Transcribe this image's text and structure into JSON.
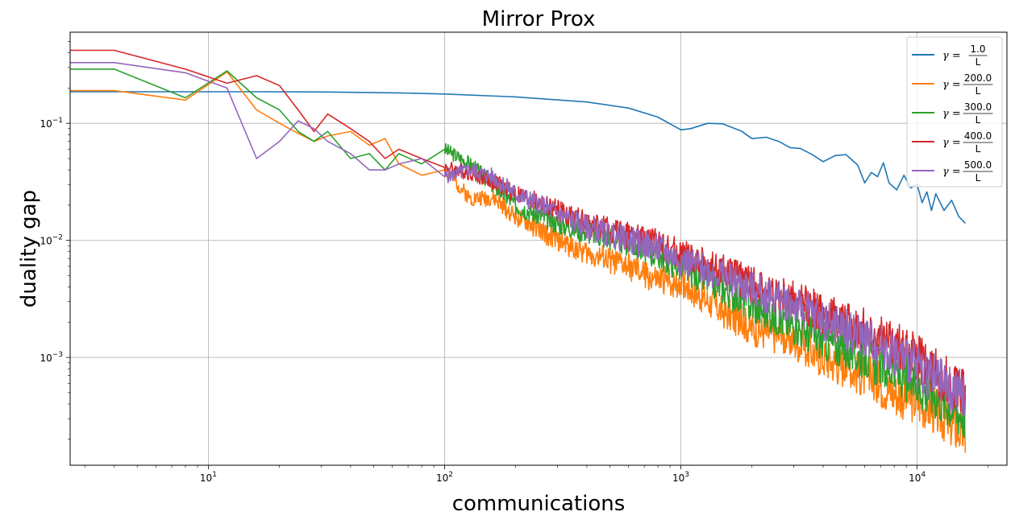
{
  "chart_data": {
    "type": "line",
    "title": "Mirror Prox",
    "xlabel": "communications",
    "ylabel": "duality gap",
    "x_scale": "log",
    "y_scale": "log",
    "xlim": [
      2.6,
      24000
    ],
    "ylim": [
      0.00012,
      0.6
    ],
    "x_ticks": [
      {
        "value": 10,
        "base": "10",
        "exp": "1"
      },
      {
        "value": 100,
        "base": "10",
        "exp": "2"
      },
      {
        "value": 1000,
        "base": "10",
        "exp": "3"
      },
      {
        "value": 10000,
        "base": "10",
        "exp": "4"
      }
    ],
    "y_ticks": [
      {
        "value": 0.001,
        "base": "10",
        "exp": "−3"
      },
      {
        "value": 0.01,
        "base": "10",
        "exp": "−2"
      },
      {
        "value": 0.1,
        "base": "10",
        "exp": "−1"
      }
    ],
    "grid": true,
    "legend_position": "top-right",
    "series": [
      {
        "name": "γ = 1.0/L",
        "gamma_num": "1.0",
        "color": "#1f77b4",
        "points": [
          [
            2,
            0.186
          ],
          [
            4,
            0.186
          ],
          [
            8,
            0.186
          ],
          [
            16,
            0.186
          ],
          [
            32,
            0.185
          ],
          [
            64,
            0.182
          ],
          [
            100,
            0.178
          ],
          [
            200,
            0.168
          ],
          [
            400,
            0.152
          ],
          [
            600,
            0.135
          ],
          [
            800,
            0.113
          ],
          [
            1000,
            0.088
          ],
          [
            1100,
            0.09
          ],
          [
            1300,
            0.1
          ],
          [
            1500,
            0.099
          ],
          [
            1800,
            0.086
          ],
          [
            2000,
            0.074
          ],
          [
            2300,
            0.076
          ],
          [
            2600,
            0.07
          ],
          [
            2900,
            0.062
          ],
          [
            3200,
            0.061
          ],
          [
            3600,
            0.054
          ],
          [
            4000,
            0.047
          ],
          [
            4500,
            0.053
          ],
          [
            5000,
            0.054
          ],
          [
            5600,
            0.044
          ],
          [
            6000,
            0.031
          ],
          [
            6400,
            0.038
          ],
          [
            6800,
            0.035
          ],
          [
            7200,
            0.046
          ],
          [
            7600,
            0.031
          ],
          [
            8200,
            0.027
          ],
          [
            8800,
            0.036
          ],
          [
            9400,
            0.028
          ],
          [
            10000,
            0.03
          ],
          [
            10500,
            0.021
          ],
          [
            11000,
            0.026
          ],
          [
            11500,
            0.018
          ],
          [
            12000,
            0.025
          ],
          [
            13000,
            0.018
          ],
          [
            14000,
            0.022
          ],
          [
            15000,
            0.016
          ],
          [
            16000,
            0.014
          ]
        ]
      },
      {
        "name": "γ = 200.0/L",
        "gamma_num": "200.0",
        "color": "#ff7f0e",
        "noise": 0.1,
        "seed": 2,
        "points": [
          [
            2,
            0.19
          ],
          [
            4,
            0.19
          ],
          [
            8,
            0.158
          ],
          [
            12,
            0.275
          ],
          [
            16,
            0.13
          ],
          [
            20,
            0.1
          ],
          [
            24,
            0.082
          ],
          [
            28,
            0.07
          ],
          [
            32,
            0.078
          ],
          [
            40,
            0.085
          ],
          [
            48,
            0.065
          ],
          [
            56,
            0.074
          ],
          [
            64,
            0.045
          ],
          [
            80,
            0.036
          ],
          [
            100,
            0.04
          ],
          [
            128,
            0.023
          ],
          [
            160,
            0.023
          ],
          [
            200,
            0.016
          ],
          [
            300,
            0.01
          ],
          [
            400,
            0.0078
          ],
          [
            600,
            0.006
          ],
          [
            800,
            0.0045
          ],
          [
            1000,
            0.0044
          ],
          [
            1500,
            0.0025
          ],
          [
            2000,
            0.0018
          ],
          [
            3000,
            0.0014
          ],
          [
            4000,
            0.001
          ],
          [
            6000,
            0.0007
          ],
          [
            8000,
            0.0005
          ],
          [
            10000,
            0.00043
          ],
          [
            12000,
            0.00035
          ],
          [
            16000,
            0.00022
          ]
        ]
      },
      {
        "name": "γ = 300.0/L",
        "gamma_num": "300.0",
        "color": "#2ca02c",
        "noise": 0.1,
        "seed": 3,
        "points": [
          [
            2,
            0.29
          ],
          [
            4,
            0.29
          ],
          [
            8,
            0.165
          ],
          [
            12,
            0.28
          ],
          [
            16,
            0.165
          ],
          [
            20,
            0.13
          ],
          [
            24,
            0.085
          ],
          [
            28,
            0.07
          ],
          [
            32,
            0.085
          ],
          [
            40,
            0.05
          ],
          [
            48,
            0.055
          ],
          [
            56,
            0.04
          ],
          [
            64,
            0.055
          ],
          [
            80,
            0.045
          ],
          [
            100,
            0.06
          ],
          [
            128,
            0.045
          ],
          [
            160,
            0.03
          ],
          [
            200,
            0.02
          ],
          [
            300,
            0.014
          ],
          [
            400,
            0.012
          ],
          [
            600,
            0.0095
          ],
          [
            800,
            0.0075
          ],
          [
            1000,
            0.006
          ],
          [
            1500,
            0.004
          ],
          [
            2000,
            0.0028
          ],
          [
            3000,
            0.0019
          ],
          [
            4000,
            0.0014
          ],
          [
            6000,
            0.001
          ],
          [
            8000,
            0.00075
          ],
          [
            10000,
            0.00058
          ],
          [
            12000,
            0.00048
          ],
          [
            16000,
            0.00032
          ]
        ]
      },
      {
        "name": "γ = 400.0/L",
        "gamma_num": "400.0",
        "color": "#d62728",
        "noise": 0.1,
        "seed": 4,
        "points": [
          [
            2,
            0.42
          ],
          [
            4,
            0.42
          ],
          [
            8,
            0.29
          ],
          [
            12,
            0.22
          ],
          [
            16,
            0.255
          ],
          [
            20,
            0.21
          ],
          [
            24,
            0.13
          ],
          [
            28,
            0.085
          ],
          [
            32,
            0.12
          ],
          [
            40,
            0.09
          ],
          [
            48,
            0.07
          ],
          [
            56,
            0.05
          ],
          [
            64,
            0.06
          ],
          [
            80,
            0.05
          ],
          [
            100,
            0.042
          ],
          [
            128,
            0.038
          ],
          [
            160,
            0.032
          ],
          [
            200,
            0.025
          ],
          [
            300,
            0.018
          ],
          [
            400,
            0.014
          ],
          [
            600,
            0.011
          ],
          [
            800,
            0.0095
          ],
          [
            1000,
            0.0075
          ],
          [
            1500,
            0.0055
          ],
          [
            2000,
            0.0042
          ],
          [
            3000,
            0.0031
          ],
          [
            4000,
            0.0024
          ],
          [
            6000,
            0.0017
          ],
          [
            8000,
            0.0013
          ],
          [
            10000,
            0.001
          ],
          [
            12000,
            0.00075
          ],
          [
            16000,
            0.0005
          ]
        ]
      },
      {
        "name": "γ = 500.0/L",
        "gamma_num": "500.0",
        "color": "#9467bd",
        "noise": 0.1,
        "seed": 5,
        "points": [
          [
            2,
            0.33
          ],
          [
            4,
            0.33
          ],
          [
            8,
            0.27
          ],
          [
            12,
            0.2
          ],
          [
            16,
            0.05
          ],
          [
            20,
            0.07
          ],
          [
            24,
            0.105
          ],
          [
            28,
            0.09
          ],
          [
            32,
            0.07
          ],
          [
            40,
            0.055
          ],
          [
            48,
            0.04
          ],
          [
            56,
            0.04
          ],
          [
            64,
            0.045
          ],
          [
            80,
            0.05
          ],
          [
            100,
            0.035
          ],
          [
            128,
            0.04
          ],
          [
            160,
            0.035
          ],
          [
            200,
            0.025
          ],
          [
            300,
            0.017
          ],
          [
            400,
            0.013
          ],
          [
            600,
            0.01
          ],
          [
            800,
            0.0085
          ],
          [
            1000,
            0.0068
          ],
          [
            1500,
            0.005
          ],
          [
            2000,
            0.0038
          ],
          [
            3000,
            0.0028
          ],
          [
            4000,
            0.0021
          ],
          [
            6000,
            0.0015
          ],
          [
            8000,
            0.0011
          ],
          [
            10000,
            0.00085
          ],
          [
            12000,
            0.00065
          ],
          [
            16000,
            0.00045
          ]
        ]
      }
    ]
  }
}
